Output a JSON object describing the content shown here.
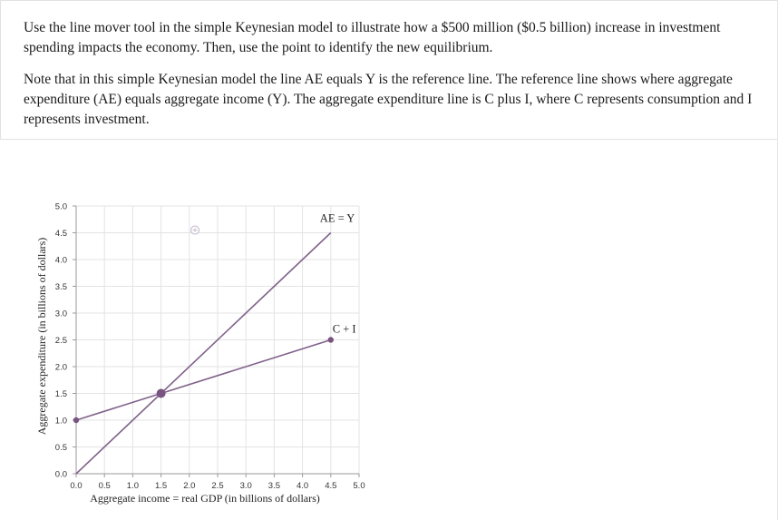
{
  "instructions": {
    "p1": "Use the line mover tool in the simple Keynesian model to illustrate how a $500 million ($0.5 billion) increase in investment spending impacts the economy. Then, use the point to identify the new equilibrium.",
    "p2": "Note that in this simple Keynesian model the line AE equals Y is the reference line. The reference line shows where aggregate expenditure (AE) equals aggregate income (Y). The aggregate expenditure line is C plus I, where C represents consumption and I represents investment."
  },
  "chart_data": {
    "type": "line",
    "xlabel": "Aggregate income = real GDP (in billions of dollars)",
    "ylabel": "Aggregate expenditure (in billions of dollars)",
    "xlim": [
      0,
      5
    ],
    "ylim": [
      0,
      5
    ],
    "xticks": [
      "0.0",
      "0.5",
      "1.0",
      "1.5",
      "2.0",
      "2.5",
      "3.0",
      "3.5",
      "4.0",
      "4.5",
      "5.0"
    ],
    "yticks": [
      "0.0",
      "0.5",
      "1.0",
      "1.5",
      "2.0",
      "2.5",
      "3.0",
      "3.5",
      "4.0",
      "4.5",
      "5.0"
    ],
    "grid": true,
    "series": [
      {
        "name": "AE = Y",
        "x": [
          0,
          4.5
        ],
        "y": [
          0,
          4.5
        ]
      },
      {
        "name": "C + I",
        "x": [
          0,
          4.5
        ],
        "y": [
          1.0,
          2.5
        ]
      }
    ],
    "equilibrium_point": {
      "x": 1.5,
      "y": 1.5
    },
    "tool_point": {
      "x": 2.1,
      "y": 4.55
    },
    "line_color": "#80628a",
    "point_color": "#7a5480",
    "grid_color": "#e3e3e3",
    "axis_color": "#9a9a9a"
  }
}
